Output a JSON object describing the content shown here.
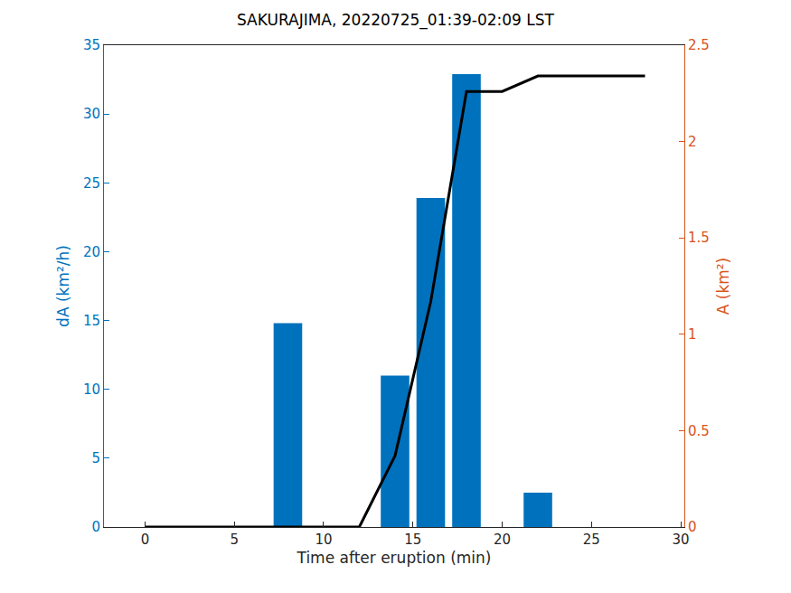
{
  "chart_data": {
    "type": "bar",
    "title": "SAKURAJIMA, 20220725_01:39-02:09 LST",
    "x_label": "Time after eruption (min)",
    "y_label": "dA (km²/h)",
    "y2_label": "A (km²)",
    "x": [
      0,
      2,
      4,
      6,
      8,
      10,
      12,
      14,
      16,
      18,
      20,
      22,
      24,
      26,
      28
    ],
    "series": [
      {
        "type": "bar",
        "color": "#0072BD",
        "axis": "y",
        "values": [
          0,
          0,
          0,
          0,
          14.8,
          0,
          0,
          11,
          23.9,
          32.9,
          0,
          2.5,
          0,
          0,
          0
        ]
      },
      {
        "type": "line",
        "color": "#000000",
        "axis": "y2",
        "line_style": "solid",
        "values": [
          0,
          0,
          0,
          0,
          0,
          0,
          0,
          0.37,
          1.17,
          2.26,
          2.26,
          2.34,
          2.34,
          2.34,
          2.34
        ]
      }
    ],
    "xlim": [
      -2.3,
      30.2
    ],
    "xticks": [
      0,
      5,
      10,
      15,
      20,
      25,
      30
    ],
    "ylim": [
      0,
      35
    ],
    "yticks": [
      0,
      5,
      10,
      15,
      20,
      25,
      30,
      35
    ],
    "y2lim": [
      0,
      2.5
    ],
    "y2ticks": [
      0,
      0.5,
      1,
      1.5,
      2,
      2.5
    ],
    "y_color": "#0072BD",
    "y2_color": "#D95319",
    "grid": false
  }
}
